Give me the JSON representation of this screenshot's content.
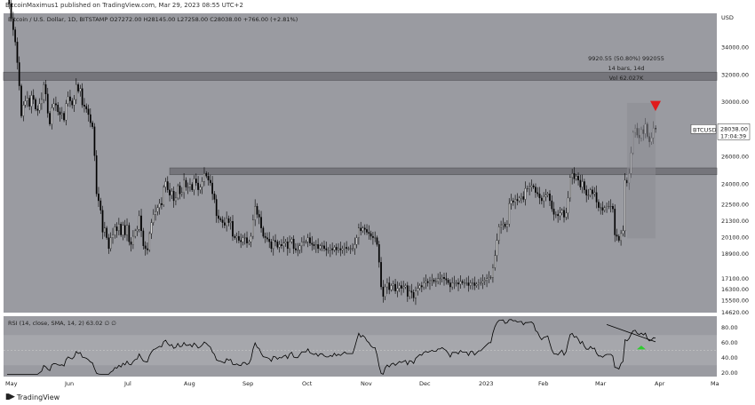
{
  "header": {
    "published": "BitcoinMaximus1 published on TradingView.com, Mar 29, 2023 08:55 UTC+2"
  },
  "footer": {
    "brand": "TradingView",
    "logo_icon": "tradingview-logo-icon"
  },
  "colors": {
    "background": "#9a9ba1",
    "rsi_band": "#a6a7ac",
    "zone": "#6e6f74",
    "candle": "#000000",
    "arrow_red": "#e01b1b",
    "arrow_green": "#2ecc2e"
  },
  "chart_data": [
    {
      "type": "candlestick",
      "title": "Bitcoin / U.S. Dollar, 1D, BITSTAMP",
      "ohlc": {
        "o": "27272.00",
        "h": "28145.00",
        "l": "27258.00",
        "c": "28038.00",
        "change": "+766.00 (+2.81%)"
      },
      "currency": "USD",
      "ylim": [
        14620,
        36500
      ],
      "price_ticks": [
        "34000.00",
        "32000.00",
        "30000.00",
        "28000.00",
        "26000.00",
        "24000.00",
        "22500.00",
        "21300.00",
        "20100.00",
        "18900.00",
        "17100.00",
        "16300.00",
        "15500.00",
        "14620.00"
      ],
      "last_price": {
        "symbol": "BTCUSD",
        "value": "28038.00",
        "countdown": "17:04:39"
      },
      "x_labels": [
        "May",
        "Jun",
        "Jul",
        "Aug",
        "Sep",
        "Oct",
        "Nov",
        "Dec",
        "2023",
        "Feb",
        "Mar",
        "Apr",
        "Ma"
      ],
      "zones": [
        {
          "from": 31600,
          "to": 32200
        },
        {
          "from": 24700,
          "to": 25200
        }
      ],
      "measure": {
        "line1": "9920.55 (50.80%) 992055",
        "line2": "14 bars, 14d",
        "line3": "Vol 62.027K"
      },
      "closes": [
        38000,
        37200,
        36100,
        35300,
        34400,
        32900,
        31200,
        29000,
        29800,
        30100,
        30300,
        29700,
        30500,
        30200,
        29500,
        29400,
        29900,
        30200,
        31300,
        30600,
        29200,
        28400,
        29600,
        29900,
        29800,
        29300,
        29100,
        29200,
        28700,
        29900,
        30400,
        30100,
        29800,
        30200,
        31300,
        30800,
        31000,
        29800,
        29700,
        29500,
        29100,
        28500,
        28200,
        26100,
        23300,
        22800,
        22100,
        20500,
        20800,
        20100,
        19300,
        20100,
        20300,
        20900,
        20600,
        21100,
        20300,
        21000,
        20300,
        21000,
        19800,
        19600,
        20200,
        20600,
        20700,
        21700,
        20600,
        19500,
        19300,
        19200,
        20400,
        21200,
        21800,
        22000,
        22300,
        22600,
        22500,
        23800,
        24200,
        23600,
        23200,
        23500,
        22800,
        23000,
        23900,
        23300,
        23400,
        24300,
        23800,
        23800,
        24000,
        23600,
        24400,
        24100,
        23600,
        23800,
        24200,
        24800,
        24600,
        24300,
        24100,
        23300,
        22900,
        21700,
        21500,
        21400,
        21200,
        21000,
        21500,
        21200,
        21300,
        20200,
        20100,
        20200,
        19900,
        19800,
        20100,
        20100,
        19700,
        19800,
        20200,
        21400,
        22400,
        21800,
        21600,
        20800,
        20200,
        20100,
        20000,
        19800,
        19300,
        19900,
        19800,
        19400,
        19600,
        19500,
        19700,
        19800,
        19300,
        19800,
        20000,
        19300,
        19200,
        19200,
        19500,
        19800,
        19800,
        19800,
        20100,
        19700,
        19600,
        19500,
        19600,
        19300,
        19500,
        19500,
        19300,
        19200,
        19200,
        19300,
        19200,
        19400,
        19200,
        19300,
        19200,
        19300,
        19400,
        19300,
        19300,
        19300,
        19300,
        19600,
        20100,
        20800,
        20600,
        20800,
        20700,
        20500,
        20400,
        20200,
        20100,
        20100,
        19600,
        18300,
        16500,
        15800,
        16500,
        16800,
        16300,
        16600,
        16700,
        16200,
        16400,
        16600,
        16400,
        16500,
        16600,
        15800,
        16200,
        16100,
        15700,
        16200,
        16400,
        16600,
        16500,
        16800,
        16900,
        16800,
        16900,
        17000,
        16900,
        16900,
        17100,
        17100,
        17200,
        17100,
        17000,
        16800,
        16500,
        16800,
        16800,
        16800,
        16700,
        16900,
        16800,
        16800,
        16800,
        16600,
        16800,
        16800,
        16600,
        16700,
        16800,
        16800,
        16900,
        17000,
        17100,
        17200,
        17200,
        17900,
        18800,
        19900,
        20900,
        21000,
        21100,
        20900,
        21100,
        22600,
        22800,
        22700,
        22900,
        22800,
        23000,
        23100,
        22900,
        23700,
        23700,
        23800,
        23900,
        23800,
        23400,
        23300,
        23000,
        22800,
        23100,
        23200,
        23300,
        22800,
        22200,
        21800,
        21800,
        21700,
        21900,
        22100,
        21600,
        21900,
        23000,
        24500,
        24800,
        24400,
        24600,
        24300,
        23800,
        24200,
        23600,
        23200,
        23200,
        23600,
        23300,
        23400,
        22700,
        22300,
        22300,
        22100,
        22300,
        22400,
        22400,
        22400,
        22200,
        20300,
        20200,
        19900,
        20400,
        20600,
        24300,
        24100,
        24800,
        26300,
        27800,
        28100,
        27600,
        27400,
        28000,
        27700,
        28400,
        27500,
        27100,
        27400,
        28100,
        28038
      ],
      "rsi": {
        "label": "RSI (14, close, SMA, 14, 2)",
        "value": "63.02",
        "extra": "∅ ∅",
        "ylim": [
          15,
          95
        ],
        "ticks": [
          "80.00",
          "60.00",
          "40.00",
          "20.00"
        ],
        "band": [
          30,
          70
        ],
        "midline": 50,
        "trendline": [
          {
            "i": 295,
            "v": 84
          },
          {
            "i": 365,
            "v": 61
          }
        ]
      }
    }
  ]
}
